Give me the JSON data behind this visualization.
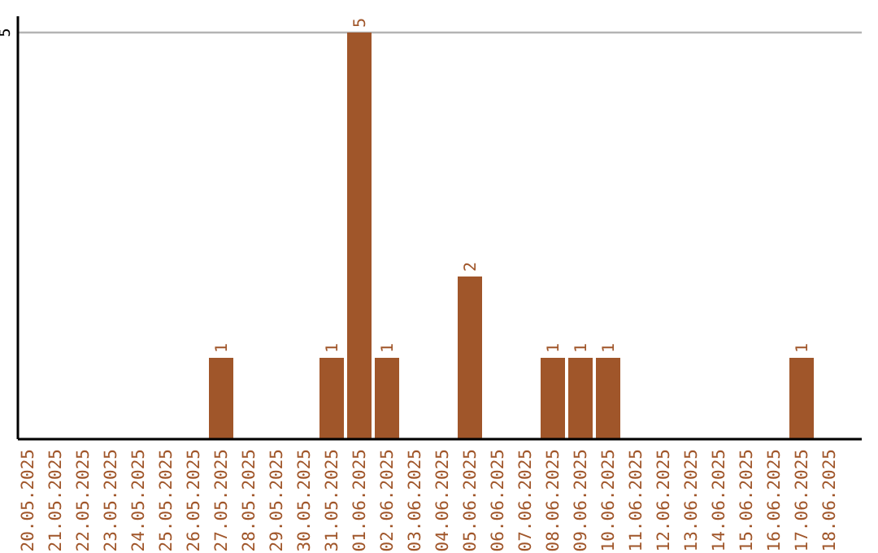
{
  "chart_data": {
    "type": "bar",
    "categories": [
      "20.05.2025",
      "21.05.2025",
      "22.05.2025",
      "23.05.2025",
      "24.05.2025",
      "25.05.2025",
      "26.05.2025",
      "27.05.2025",
      "28.05.2025",
      "29.05.2025",
      "30.05.2025",
      "31.05.2025",
      "01.06.2025",
      "02.06.2025",
      "03.06.2025",
      "04.06.2025",
      "05.06.2025",
      "06.06.2025",
      "07.06.2025",
      "08.06.2025",
      "09.06.2025",
      "10.06.2025",
      "11.06.2025",
      "12.06.2025",
      "13.06.2025",
      "14.06.2025",
      "15.06.2025",
      "16.06.2025",
      "17.06.2025",
      "18.06.2025"
    ],
    "values": [
      0,
      0,
      0,
      0,
      0,
      0,
      0,
      1,
      0,
      0,
      0,
      1,
      5,
      1,
      0,
      0,
      2,
      0,
      0,
      1,
      1,
      1,
      0,
      0,
      0,
      0,
      0,
      0,
      1,
      0
    ],
    "value_labels": [
      null,
      null,
      null,
      null,
      null,
      null,
      null,
      "1",
      null,
      null,
      null,
      "1",
      "5",
      "1",
      null,
      null,
      "2",
      null,
      null,
      "1",
      "1",
      "1",
      null,
      null,
      null,
      null,
      null,
      null,
      "1",
      null
    ],
    "color": "#a0562a",
    "ylim": [
      0,
      5
    ],
    "yticks": [
      {
        "value": 0,
        "label": null
      },
      5
    ],
    "grid": "y"
  }
}
